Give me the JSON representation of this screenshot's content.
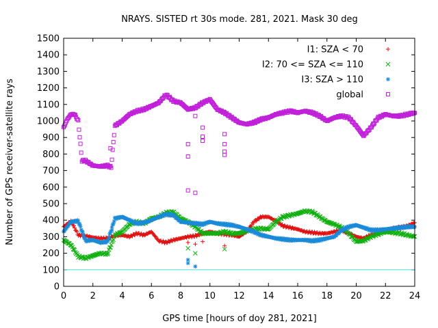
{
  "chart_data": {
    "type": "scatter",
    "title": "NRAYS. SISTED rt 30s mode. 281, 2021. Mask 30 deg",
    "xlabel": "GPS time [hours of doy 281, 2021]",
    "ylabel": "Number of GPS receiver-satellite rays",
    "xlim": [
      0,
      24
    ],
    "ylim": [
      0,
      1500
    ],
    "xticks": [
      0,
      2,
      4,
      6,
      8,
      10,
      12,
      14,
      16,
      18,
      20,
      22,
      24
    ],
    "yticks": [
      0,
      100,
      200,
      300,
      400,
      500,
      600,
      700,
      800,
      900,
      1000,
      1100,
      1200,
      1300,
      1400,
      1500
    ],
    "reference_line": {
      "y": 100,
      "color": "#40e0e0"
    },
    "legend_position": "top-right",
    "series": [
      {
        "name": "I1: SZA < 70",
        "color": "#e01010",
        "marker": "+",
        "x": [
          0,
          0.5,
          1,
          1.5,
          2,
          2.5,
          3,
          3.5,
          4,
          4.5,
          5,
          5.5,
          6,
          6.5,
          7,
          7.5,
          8,
          8.5,
          9,
          9.5,
          10,
          10.5,
          11,
          11.5,
          12,
          12.5,
          13,
          13.5,
          14,
          14.5,
          15,
          15.5,
          16,
          16.5,
          17,
          17.5,
          18,
          18.5,
          19,
          19.5,
          20,
          20.5,
          21,
          21.5,
          22,
          22.5,
          23,
          23.5,
          24
        ],
        "y": [
          360,
          395,
          310,
          305,
          295,
          290,
          290,
          305,
          310,
          300,
          320,
          310,
          330,
          275,
          265,
          280,
          290,
          300,
          305,
          320,
          330,
          320,
          315,
          310,
          300,
          330,
          390,
          420,
          420,
          395,
          365,
          355,
          345,
          330,
          325,
          320,
          320,
          330,
          340,
          320,
          300,
          290,
          310,
          320,
          340,
          350,
          355,
          365,
          385
        ]
      },
      {
        "name": "I2: 70 <= SZA <= 110",
        "color": "#10b010",
        "marker": "x",
        "x": [
          0,
          0.5,
          1,
          1.5,
          2,
          2.5,
          3,
          3.5,
          4,
          4.5,
          5,
          5.5,
          6,
          6.5,
          7,
          7.5,
          8,
          8.5,
          9,
          9.5,
          10,
          10.5,
          11,
          11.5,
          12,
          12.5,
          13,
          13.5,
          14,
          14.5,
          15,
          15.5,
          16,
          16.5,
          17,
          17.5,
          18,
          18.5,
          19,
          19.5,
          20,
          20.5,
          21,
          21.5,
          22,
          22.5,
          23,
          23.5,
          24
        ],
        "y": [
          280,
          250,
          180,
          170,
          185,
          200,
          195,
          310,
          330,
          375,
          390,
          380,
          410,
          420,
          445,
          450,
          410,
          390,
          360,
          320,
          320,
          320,
          330,
          320,
          320,
          335,
          345,
          350,
          345,
          390,
          420,
          430,
          440,
          455,
          450,
          420,
          390,
          375,
          355,
          320,
          270,
          275,
          300,
          315,
          330,
          325,
          320,
          310,
          300
        ]
      },
      {
        "name": "I3: SZA > 110",
        "color": "#1a8ad8",
        "marker": "*",
        "x": [
          0,
          0.5,
          1,
          1.5,
          2,
          2.5,
          3,
          3.5,
          4,
          4.5,
          5,
          5.5,
          6,
          6.5,
          7,
          7.5,
          8,
          8.5,
          9,
          9.5,
          10,
          10.5,
          11,
          11.5,
          12,
          12.5,
          13,
          13.5,
          14,
          14.5,
          15,
          15.5,
          16,
          16.5,
          17,
          17.5,
          18,
          18.5,
          19,
          19.5,
          20,
          20.5,
          21,
          21.5,
          22,
          22.5,
          23,
          23.5,
          24
        ],
        "y": [
          330,
          390,
          395,
          275,
          280,
          265,
          270,
          410,
          420,
          400,
          380,
          385,
          400,
          420,
          435,
          430,
          390,
          385,
          380,
          375,
          390,
          380,
          375,
          370,
          360,
          345,
          330,
          310,
          300,
          290,
          285,
          280,
          280,
          280,
          275,
          280,
          290,
          300,
          340,
          360,
          370,
          355,
          340,
          340,
          345,
          350,
          355,
          360,
          360
        ]
      },
      {
        "name": "global",
        "color": "#c020d8",
        "marker": "square",
        "x": [
          0,
          0.25,
          0.5,
          0.75,
          1,
          1.25,
          1.5,
          2,
          2.5,
          3,
          3.25,
          3.5,
          4,
          4.5,
          5,
          5.5,
          6,
          6.5,
          7,
          7.5,
          8,
          8.5,
          9,
          9.5,
          10,
          10.5,
          11,
          11.5,
          12,
          12.5,
          13,
          13.5,
          14,
          14.5,
          15,
          15.5,
          16,
          16.5,
          17,
          17.5,
          18,
          18.5,
          19,
          19.5,
          20,
          20.5,
          21,
          21.5,
          22,
          22.5,
          23,
          23.5,
          24
        ],
        "y": [
          960,
          1010,
          1040,
          1040,
          1000,
          760,
          760,
          730,
          725,
          730,
          720,
          970,
          1000,
          1040,
          1060,
          1070,
          1090,
          1110,
          1160,
          1120,
          1110,
          1070,
          1080,
          1110,
          1130,
          1070,
          1050,
          1020,
          990,
          980,
          990,
          1010,
          1020,
          1040,
          1050,
          1060,
          1050,
          1060,
          1050,
          1030,
          1000,
          1020,
          1030,
          1020,
          970,
          910,
          960,
          1020,
          1040,
          1030,
          1030,
          1040,
          1050
        ]
      }
    ],
    "outliers": [
      {
        "series": "global",
        "x": 3.2,
        "y": 835
      },
      {
        "series": "global",
        "x": 8.5,
        "y": 860
      },
      {
        "series": "global",
        "x": 8.5,
        "y": 785
      },
      {
        "series": "global",
        "x": 8.5,
        "y": 580
      },
      {
        "series": "global",
        "x": 9,
        "y": 565
      },
      {
        "series": "global",
        "x": 9,
        "y": 1030
      },
      {
        "series": "global",
        "x": 9.5,
        "y": 905
      },
      {
        "series": "global",
        "x": 9.5,
        "y": 880
      },
      {
        "series": "global",
        "x": 9.5,
        "y": 960
      },
      {
        "series": "global",
        "x": 11,
        "y": 920
      },
      {
        "series": "global",
        "x": 11,
        "y": 860
      },
      {
        "series": "global",
        "x": 11,
        "y": 815
      },
      {
        "series": "global",
        "x": 11,
        "y": 795
      },
      {
        "series": "I1: SZA < 70",
        "x": 8.5,
        "y": 265
      },
      {
        "series": "I1: SZA < 70",
        "x": 9,
        "y": 255
      },
      {
        "series": "I1: SZA < 70",
        "x": 9.5,
        "y": 270
      },
      {
        "series": "I1: SZA < 70",
        "x": 11,
        "y": 245
      },
      {
        "series": "I2: 70 <= SZA <= 110",
        "x": 8.5,
        "y": 230
      },
      {
        "series": "I2: 70 <= SZA <= 110",
        "x": 9,
        "y": 200
      },
      {
        "series": "I2: 70 <= SZA <= 110",
        "x": 11,
        "y": 225
      },
      {
        "series": "I3: SZA > 110",
        "x": 8.5,
        "y": 140
      },
      {
        "series": "I3: SZA > 110",
        "x": 8.5,
        "y": 160
      },
      {
        "series": "I3: SZA > 110",
        "x": 9,
        "y": 120
      },
      {
        "series": "I3: SZA > 110",
        "x": 3.3,
        "y": 340
      }
    ]
  }
}
